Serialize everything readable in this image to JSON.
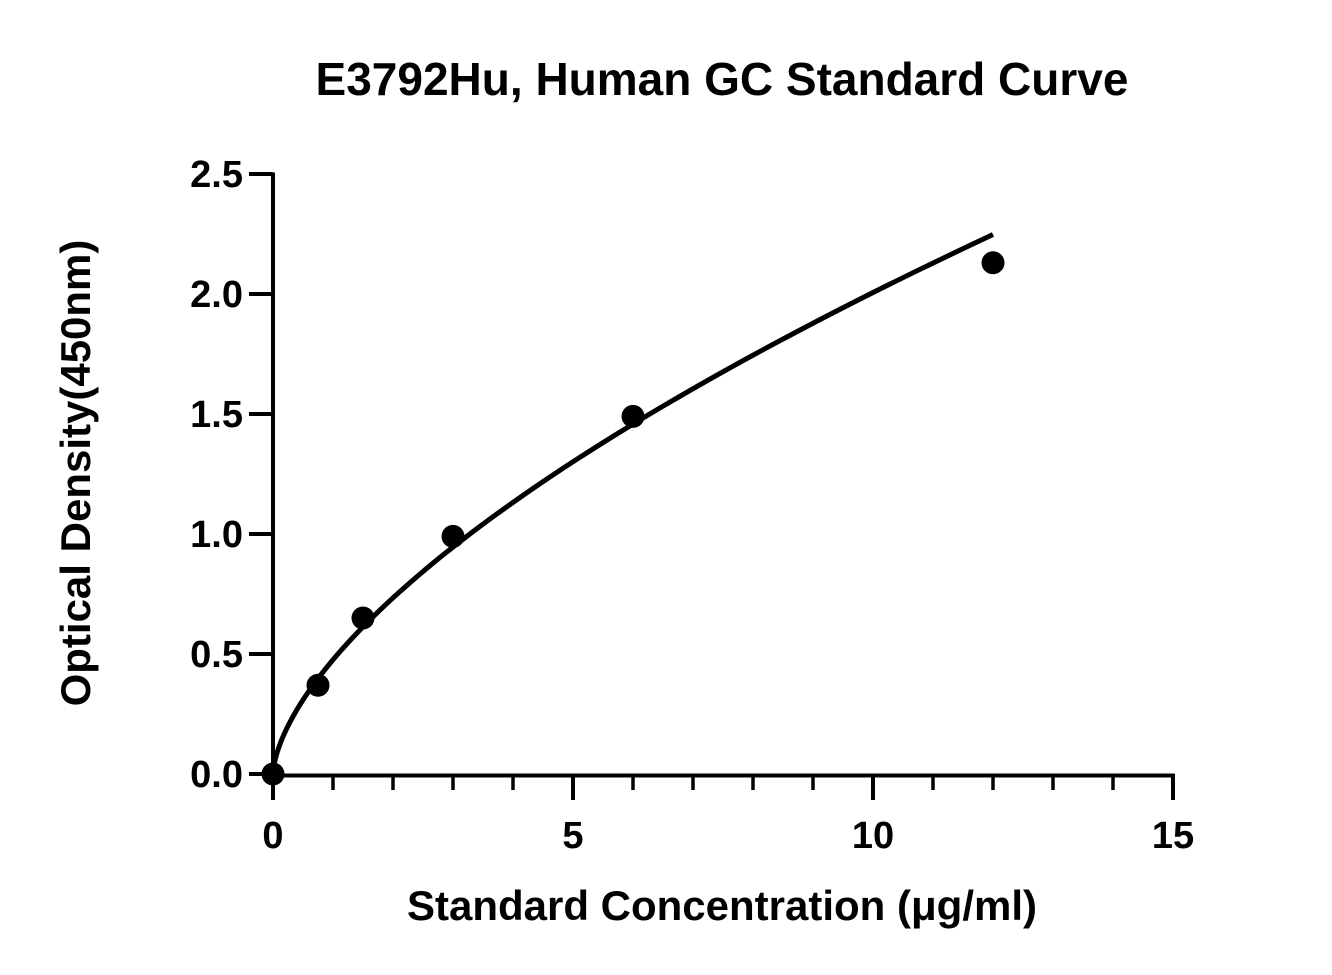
{
  "chart_data": {
    "type": "scatter",
    "title": "E3792Hu, Human GC Standard Curve",
    "xlabel": "Standard Concentration (μg/ml)",
    "ylabel": "Optical Density(450nm)",
    "xlim": [
      0,
      15
    ],
    "ylim": [
      0,
      2.5
    ],
    "x_ticks": [
      "0",
      "5",
      "10",
      "15"
    ],
    "y_ticks": [
      "0.0",
      "0.5",
      "1.0",
      "1.5",
      "2.0",
      "2.5"
    ],
    "x_minor_step": 1,
    "grid": false,
    "legend": "none",
    "series": [
      {
        "x": [
          0,
          0.75,
          1.5,
          3,
          6,
          12
        ],
        "y": [
          0.0,
          0.37,
          0.65,
          0.99,
          1.49,
          2.13
        ],
        "marker": "circle",
        "fit_curve": true
      }
    ],
    "colors": {
      "ink": "#000000",
      "background": "#ffffff"
    }
  }
}
